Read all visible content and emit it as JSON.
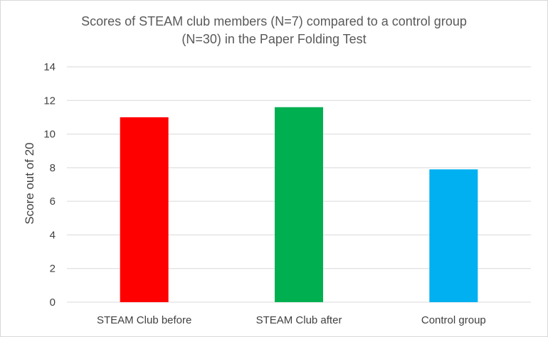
{
  "chart_data": {
    "type": "bar",
    "title_lines": [
      "Scores of STEAM club members (N=7) compared to a control group",
      "(N=30) in the Paper Folding Test"
    ],
    "xlabel": "",
    "ylabel": "Score out of 20",
    "categories": [
      "STEAM Club before",
      "STEAM Club after",
      "Control group"
    ],
    "values": [
      11,
      11.6,
      7.9
    ],
    "colors": [
      "#ff0000",
      "#00b050",
      "#00b0f0"
    ],
    "ylim": [
      0,
      14
    ],
    "yticks": [
      "0",
      "2",
      "4",
      "6",
      "8",
      "10",
      "12",
      "14"
    ],
    "grid": true,
    "legend": "none"
  }
}
